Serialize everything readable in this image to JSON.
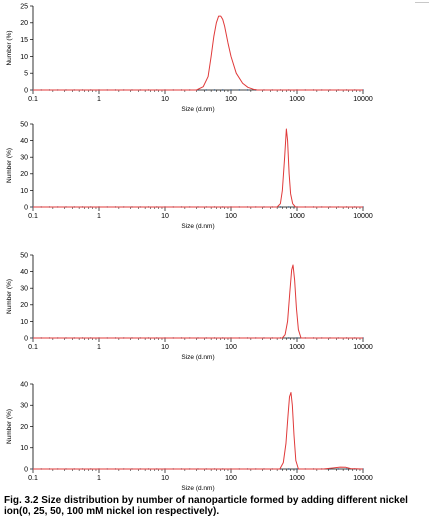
{
  "caption": "Fig. 3.2 Size distribution by number of nanoparticle formed by adding different nickel ion(0, 25, 50, 100 mM nickel ion respectively).",
  "colors": {
    "curve": "#e03a3a",
    "baseline_marker": "#2a4f7a",
    "axis": "#000000",
    "grid": "#c8c8c8"
  },
  "chart_data": [
    {
      "type": "line",
      "xscale": "log",
      "xlim": [
        0.1,
        10000
      ],
      "xticks": [
        "0.1",
        "1",
        "10",
        "100",
        "1000",
        "10000"
      ],
      "xlabel": "Size (d.nm)",
      "ylabel": "Number (%)",
      "ylim": [
        0,
        25
      ],
      "yticks": [
        "0",
        "5",
        "10",
        "15",
        "20",
        "25"
      ],
      "series": [
        {
          "x": [
            0.1,
            30,
            38,
            45,
            50,
            55,
            60,
            65,
            70,
            75,
            80,
            90,
            100,
            120,
            150,
            180,
            220,
            250,
            10000
          ],
          "y": [
            0,
            0,
            1,
            4,
            10,
            16,
            20,
            22,
            22,
            21,
            19,
            14,
            10,
            5,
            2,
            0.8,
            0.2,
            0,
            0
          ]
        }
      ]
    },
    {
      "type": "line",
      "xscale": "log",
      "xlim": [
        0.1,
        10000
      ],
      "xticks": [
        "0.1",
        "1",
        "10",
        "100",
        "1000",
        "10000"
      ],
      "xlabel": "Size (d.nm)",
      "ylabel": "Number (%)",
      "ylim": [
        0,
        50
      ],
      "yticks": [
        "0",
        "10",
        "20",
        "30",
        "40",
        "50"
      ],
      "series": [
        {
          "x": [
            0.1,
            500,
            560,
            600,
            650,
            690,
            720,
            760,
            800,
            860,
            950,
            10000
          ],
          "y": [
            0,
            0,
            2,
            10,
            30,
            47,
            40,
            20,
            8,
            2,
            0,
            0
          ]
        }
      ]
    },
    {
      "type": "line",
      "xscale": "log",
      "xlim": [
        0.1,
        10000
      ],
      "xticks": [
        "0.1",
        "1",
        "10",
        "100",
        "1000",
        "10000"
      ],
      "xlabel": "Size (d.nm)",
      "ylabel": "Number (%)",
      "ylim": [
        0,
        50
      ],
      "yticks": [
        "0",
        "10",
        "20",
        "30",
        "40",
        "50"
      ],
      "series": [
        {
          "x": [
            0.1,
            600,
            660,
            720,
            780,
            830,
            870,
            920,
            980,
            1050,
            1150,
            10000
          ],
          "y": [
            0,
            0,
            2,
            10,
            28,
            41,
            44,
            35,
            18,
            5,
            0,
            0
          ]
        }
      ]
    },
    {
      "type": "line",
      "xscale": "log",
      "xlim": [
        0.1,
        10000
      ],
      "xticks": [
        "0.1",
        "1",
        "10",
        "100",
        "1000",
        "10000"
      ],
      "xlabel": "Size (d.nm)",
      "ylabel": "Number (%)",
      "ylim": [
        0,
        40
      ],
      "yticks": [
        "0",
        "10",
        "20",
        "30",
        "40"
      ],
      "series": [
        {
          "x": [
            0.1,
            550,
            620,
            680,
            730,
            770,
            810,
            850,
            900,
            960,
            1050,
            2500,
            3500,
            4500,
            5500,
            6500,
            10000
          ],
          "y": [
            0,
            0,
            3,
            12,
            25,
            34,
            36,
            30,
            16,
            4,
            0,
            0,
            0.5,
            0.9,
            0.8,
            0.2,
            0
          ]
        }
      ]
    }
  ]
}
